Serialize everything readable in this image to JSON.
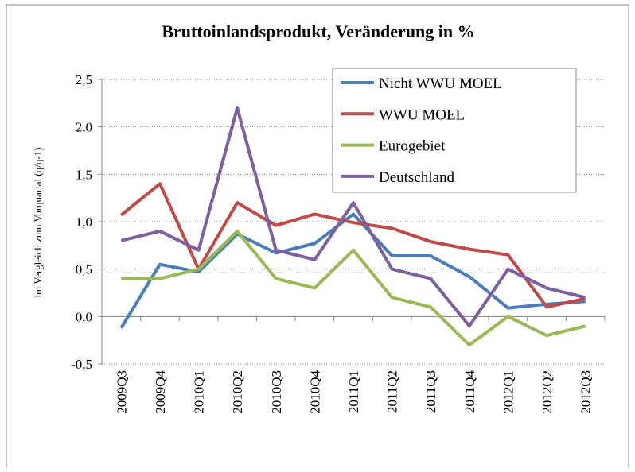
{
  "chart_data": {
    "type": "line",
    "title": "Bruttoinlandsprodukt, Veränderung in %",
    "y_label": "im Vergleich zum Vorquartal (q/q-1)",
    "categories": [
      "2009Q3",
      "2009Q4",
      "2010Q1",
      "2010Q2",
      "2010Q3",
      "2010Q4",
      "2011Q1",
      "2011Q2",
      "2011Q3",
      "2011Q4",
      "2012Q1",
      "2012Q2",
      "2012Q3"
    ],
    "series": [
      {
        "name": "Nicht WWU MOEL",
        "color": "#4a7ebb",
        "values": [
          -0.12,
          0.55,
          0.47,
          0.87,
          0.67,
          0.77,
          1.08,
          0.64,
          0.64,
          0.42,
          0.09,
          0.13,
          0.16
        ]
      },
      {
        "name": "WWU MOEL",
        "color": "#be4b48",
        "values": [
          1.07,
          1.4,
          0.5,
          1.2,
          0.96,
          1.08,
          0.99,
          0.93,
          0.79,
          0.71,
          0.65,
          0.1,
          0.19
        ]
      },
      {
        "name": "Eurogebiet",
        "color": "#98b954",
        "values": [
          0.4,
          0.4,
          0.5,
          0.9,
          0.4,
          0.3,
          0.7,
          0.2,
          0.1,
          -0.3,
          0.0,
          -0.2,
          -0.1
        ]
      },
      {
        "name": "Deutschland",
        "color": "#7d60a0",
        "values": [
          0.8,
          0.9,
          0.7,
          2.2,
          0.7,
          0.6,
          1.2,
          0.5,
          0.4,
          -0.1,
          0.5,
          0.3,
          0.2
        ]
      }
    ],
    "ylim": [
      -0.5,
      2.5
    ],
    "yticks": [
      {
        "value": -0.5,
        "label": "-0,5"
      },
      {
        "value": 0,
        "label": "0,0"
      },
      {
        "value": 0.5,
        "label": "0,5"
      },
      {
        "value": 1,
        "label": "1,0"
      },
      {
        "value": 1.5,
        "label": "1,5"
      },
      {
        "value": 2,
        "label": "2,0"
      },
      {
        "value": 2.5,
        "label": "2,5"
      }
    ],
    "grid": true,
    "legend": "top-right"
  }
}
